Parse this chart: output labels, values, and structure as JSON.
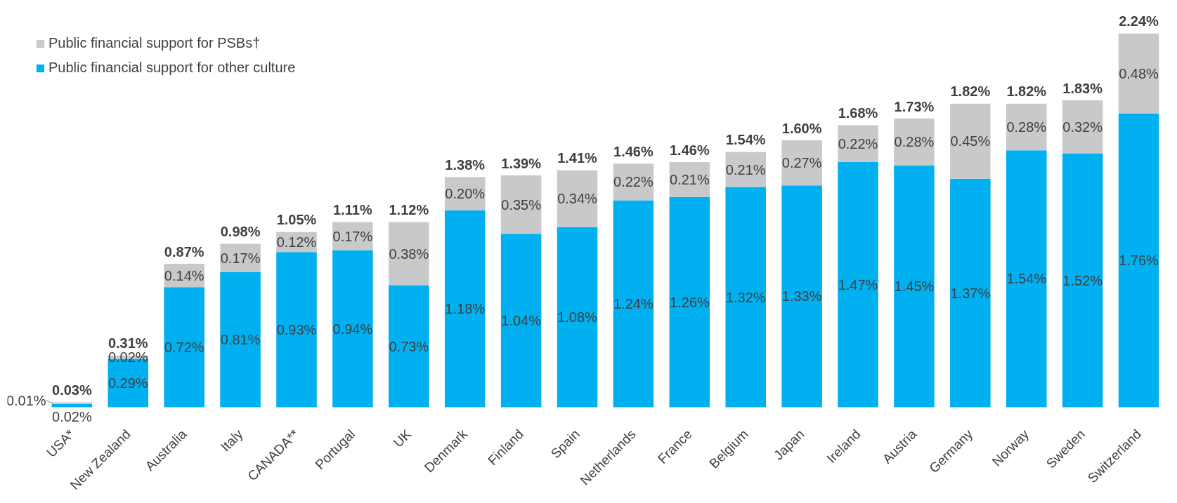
{
  "chart_data": {
    "type": "bar",
    "stacked": true,
    "legend": "top left",
    "grid": false,
    "categories": [
      "USA*",
      "New Zealand",
      "Australia",
      "Italy",
      "CANADA**",
      "Portugal",
      "UK",
      "Denmark",
      "Finland",
      "Spain",
      "Netherlands",
      "France",
      "Belgium",
      "Japan",
      "Ireland",
      "Austria",
      "Germany",
      "Norway",
      "Sweden",
      "Switzerland"
    ],
    "series": [
      {
        "name": "Public financial support for other culture",
        "color": "#00b0f0",
        "values": [
          0.02,
          0.29,
          0.72,
          0.81,
          0.93,
          0.94,
          0.73,
          1.18,
          1.04,
          1.08,
          1.24,
          1.26,
          1.32,
          1.33,
          1.47,
          1.45,
          1.37,
          1.54,
          1.52,
          1.76
        ],
        "value_labels": [
          "0.02%",
          "0.29%",
          "0.72%",
          "0.81%",
          "0.93%",
          "0.94%",
          "0.73%",
          "1.18%",
          "1.04%",
          "1.08%",
          "1.24%",
          "1.26%",
          "1.32%",
          "1.33%",
          "1.47%",
          "1.45%",
          "1.37%",
          "1.54%",
          "1.52%",
          "1.76%"
        ]
      },
      {
        "name": "Public financial support for PSBs†",
        "color": "#c8c9cb",
        "values": [
          0.01,
          0.02,
          0.14,
          0.17,
          0.12,
          0.17,
          0.38,
          0.2,
          0.35,
          0.34,
          0.22,
          0.21,
          0.21,
          0.27,
          0.22,
          0.28,
          0.45,
          0.28,
          0.32,
          0.48
        ],
        "value_labels": [
          "0.01%",
          "0.02%",
          "0.14%",
          "0.17%",
          "0.12%",
          "0.17%",
          "0.38%",
          "0.20%",
          "0.35%",
          "0.34%",
          "0.22%",
          "0.21%",
          "0.21%",
          "0.27%",
          "0.22%",
          "0.28%",
          "0.45%",
          "0.28%",
          "0.32%",
          "0.48%"
        ]
      }
    ],
    "totals": [
      "0.03%",
      "0.31%",
      "0.87%",
      "0.98%",
      "1.05%",
      "1.11%",
      "1.12%",
      "1.38%",
      "1.39%",
      "1.41%",
      "1.46%",
      "1.46%",
      "1.54%",
      "1.60%",
      "1.68%",
      "1.73%",
      "1.82%",
      "1.82%",
      "1.83%",
      "2.24%"
    ]
  }
}
